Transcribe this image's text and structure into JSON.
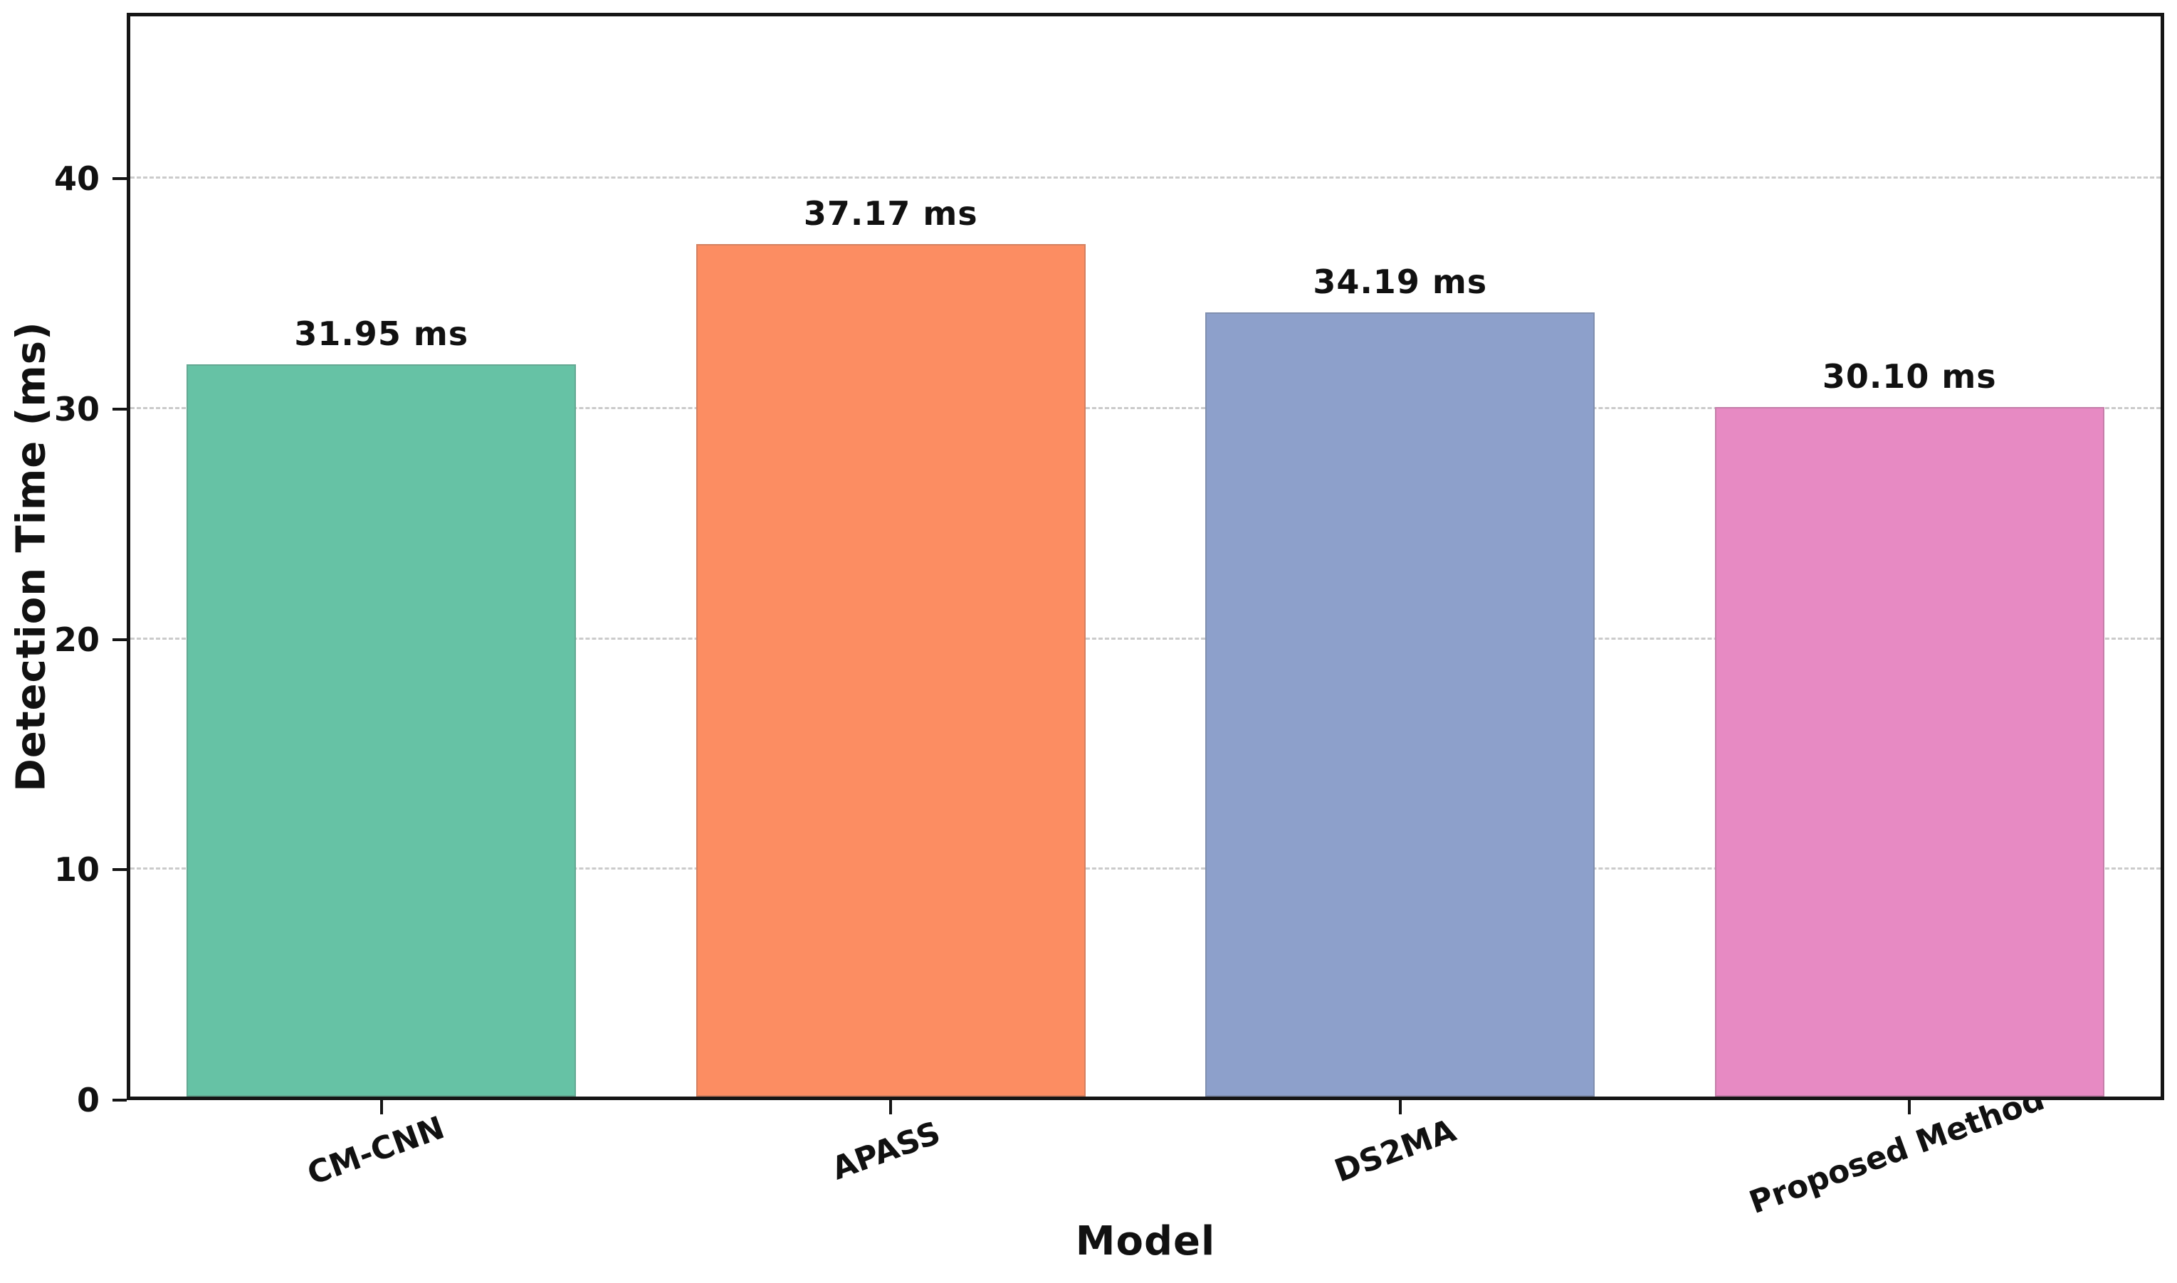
{
  "chart_data": {
    "type": "bar",
    "title": "",
    "xlabel": "Model",
    "ylabel": "Detection Time (ms)",
    "categories": [
      "CM-CNN",
      "APASS",
      "DS2MA",
      "Proposed Method"
    ],
    "values": [
      31.95,
      37.17,
      34.19,
      30.1
    ],
    "bar_labels": [
      "31.95 ms",
      "37.17 ms",
      "34.19 ms",
      "30.10 ms"
    ],
    "bar_colors": [
      "#66c2a5",
      "#fc8d62",
      "#8da0cb",
      "#e78ac3"
    ],
    "yticks": [
      0,
      10,
      20,
      30,
      40
    ],
    "ylim": [
      0,
      47.2
    ],
    "bar_width_fraction": 0.765,
    "grid": "horizontal dashed",
    "gridline_color": "#cbcbcb",
    "spine_color": "#151515",
    "text_color": "#111111",
    "xtick_rotation_deg": -20,
    "legend": "none"
  }
}
